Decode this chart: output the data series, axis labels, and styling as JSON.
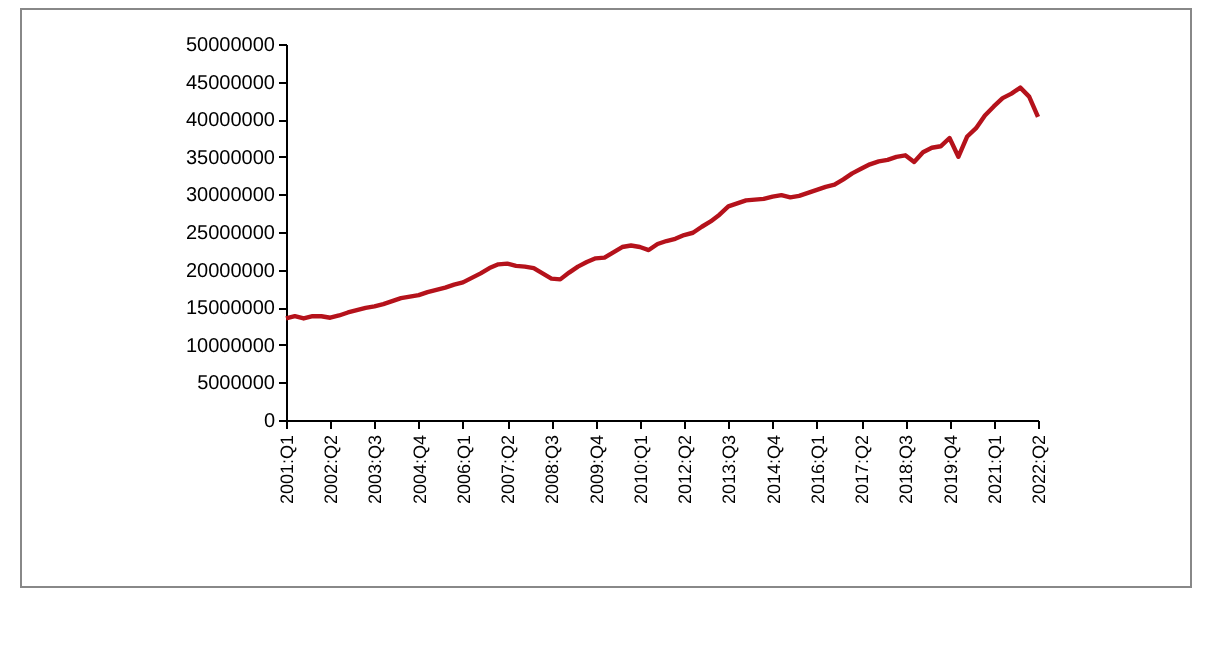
{
  "chart_data": {
    "type": "line",
    "categories": [
      "2001:Q1",
      null,
      null,
      null,
      null,
      "2002:Q2",
      null,
      null,
      null,
      null,
      "2003:Q3",
      null,
      null,
      null,
      null,
      "2004:Q4",
      null,
      null,
      null,
      null,
      "2006:Q1",
      null,
      null,
      null,
      null,
      "2007:Q2",
      null,
      null,
      null,
      null,
      "2008:Q3",
      null,
      null,
      null,
      null,
      "2009:Q4",
      null,
      null,
      null,
      null,
      "2010:Q1",
      null,
      null,
      null,
      null,
      "2012:Q2",
      null,
      null,
      null,
      null,
      "2013:Q3",
      null,
      null,
      null,
      null,
      "2014:Q4",
      null,
      null,
      null,
      null,
      "2016:Q1",
      null,
      null,
      null,
      null,
      "2017:Q2",
      null,
      null,
      null,
      null,
      "2018:Q3",
      null,
      null,
      null,
      null,
      "2019:Q4",
      null,
      null,
      null,
      null,
      "2021:Q1",
      null,
      null,
      null,
      null,
      "2022:Q2"
    ],
    "series": [
      {
        "color": "#b5121b",
        "values": [
          13500000,
          13800000,
          13500000,
          13800000,
          13800000,
          13600000,
          13900000,
          14300000,
          14600000,
          14900000,
          15100000,
          15400000,
          15800000,
          16200000,
          16400000,
          16600000,
          17000000,
          17300000,
          17600000,
          18000000,
          18300000,
          18900000,
          19500000,
          20200000,
          20700000,
          20800000,
          20500000,
          20400000,
          20200000,
          19500000,
          18800000,
          18700000,
          19600000,
          20400000,
          21000000,
          21500000,
          21600000,
          22300000,
          23000000,
          23200000,
          23000000,
          22600000,
          23400000,
          23800000,
          24100000,
          24600000,
          24900000,
          25700000,
          26400000,
          27300000,
          28400000,
          28800000,
          29200000,
          29300000,
          29400000,
          29700000,
          29900000,
          29600000,
          29800000,
          30200000,
          30600000,
          31000000,
          31300000,
          32000000,
          32800000,
          33400000,
          34000000,
          34400000,
          34600000,
          35000000,
          35200000,
          34300000,
          35600000,
          36200000,
          36400000,
          37500000,
          35000000,
          37700000,
          38800000,
          40500000,
          41700000,
          42800000,
          43400000,
          44200000,
          43000000,
          40300000
        ]
      }
    ],
    "ylim": [
      0,
      50000000
    ],
    "yticks": [
      0,
      5000000,
      10000000,
      15000000,
      20000000,
      25000000,
      30000000,
      35000000,
      40000000,
      45000000,
      50000000
    ],
    "grid": false,
    "marker": "none",
    "line_style": "solid"
  }
}
